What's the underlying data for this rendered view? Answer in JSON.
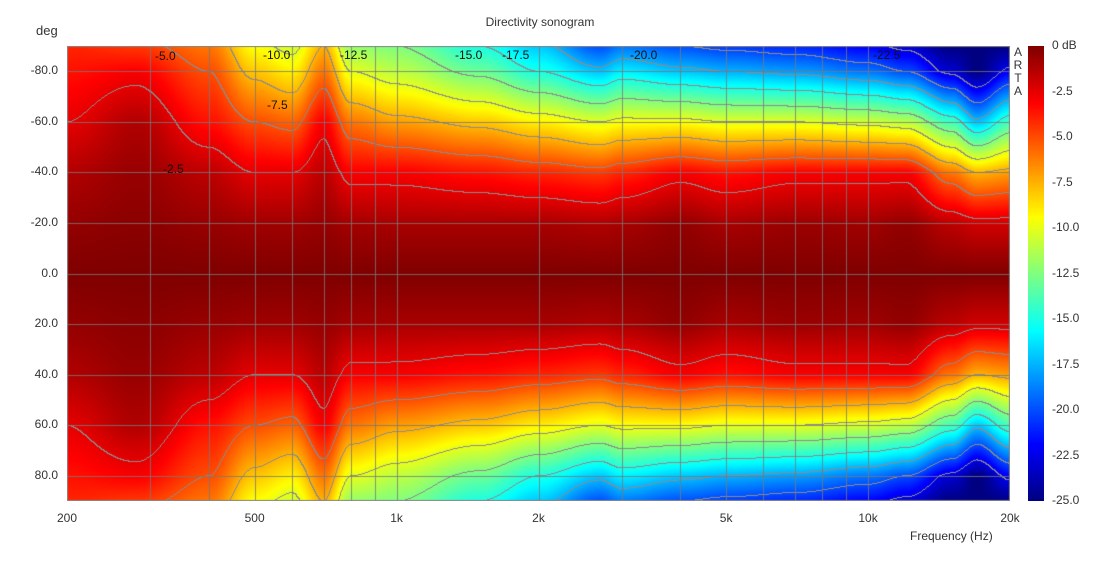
{
  "chart_data": {
    "type": "heatmap",
    "title": "Directivity sonogram",
    "xlabel": "Frequency (Hz)",
    "ylabel": "deg",
    "xscale": "log",
    "xlim": [
      200,
      20000
    ],
    "ylim": [
      -90,
      90
    ],
    "x_ticks": [
      "200",
      "500",
      "1k",
      "2k",
      "5k",
      "10k",
      "20k"
    ],
    "x_tick_values": [
      200,
      500,
      1000,
      2000,
      5000,
      10000,
      20000
    ],
    "y_ticks": [
      "-80.0",
      "-60.0",
      "-40.0",
      "-20.0",
      "0.0",
      "20.0",
      "40.0",
      "60.0",
      "80.0"
    ],
    "y_tick_values": [
      -80,
      -60,
      -40,
      -20,
      0,
      20,
      40,
      60,
      80
    ],
    "colorbar": {
      "unit_label": "0 dB",
      "ticks": [
        "0 dB",
        "-2.5",
        "-5.0",
        "-7.5",
        "-10.0",
        "-12.5",
        "-15.0",
        "-17.5",
        "-20.0",
        "-22.5",
        "-25.0"
      ],
      "range": [
        -25,
        0
      ],
      "colormap": "jet"
    },
    "contour_step_db": 2.5,
    "contour_labels": [
      "-5.0",
      "-10.0",
      "-12.5",
      "-15.0",
      "-17.5",
      "-20.0",
      "-22.5",
      "-7.5",
      "-2.5"
    ],
    "grid": true,
    "watermark": "ARTA",
    "frequencies": [
      200,
      280,
      400,
      500,
      600,
      700,
      800,
      1000,
      1500,
      2000,
      2700,
      3000,
      4000,
      5000,
      7000,
      10000,
      12000,
      15000,
      17000,
      20000
    ],
    "angles": [
      0,
      20,
      40,
      60,
      80,
      90
    ],
    "level_db": [
      [
        0,
        -0.5,
        -1.2,
        -2.5,
        -3.5,
        -4
      ],
      [
        0,
        -0.3,
        -0.6,
        -1.2,
        -3,
        -4.5
      ],
      [
        0,
        -0.6,
        -1.5,
        -3.5,
        -5,
        -6
      ],
      [
        0,
        -0.8,
        -2.5,
        -5,
        -8,
        -9.5
      ],
      [
        0,
        -0.8,
        -2.5,
        -5.5,
        -9,
        -10.5
      ],
      [
        0,
        -0.6,
        -1.5,
        -3,
        -6,
        -7.5
      ],
      [
        0,
        -0.9,
        -3,
        -6,
        -10,
        -12
      ],
      [
        0,
        -1,
        -3,
        -7,
        -11,
        -12.5
      ],
      [
        0,
        -1,
        -3.5,
        -8,
        -13,
        -15
      ],
      [
        0,
        -1,
        -4,
        -9,
        -15,
        -17
      ],
      [
        0,
        -1.2,
        -4.5,
        -10,
        -17,
        -20
      ],
      [
        0,
        -1,
        -4,
        -9.5,
        -16,
        -19
      ],
      [
        0,
        -0.5,
        -3,
        -9.5,
        -17,
        -20
      ],
      [
        0,
        -1,
        -3.5,
        -10,
        -17.5,
        -20.5
      ],
      [
        0,
        -0.7,
        -3,
        -10,
        -18,
        -21
      ],
      [
        0,
        -0.8,
        -3,
        -10.5,
        -19,
        -22
      ],
      [
        0,
        -0.5,
        -3,
        -11,
        -20,
        -23
      ],
      [
        0,
        -1.5,
        -6,
        -14,
        -23,
        -25
      ],
      [
        0,
        -2,
        -7.5,
        -17,
        -25,
        -25
      ],
      [
        0,
        -2,
        -7,
        -14,
        -22,
        -25
      ]
    ]
  }
}
